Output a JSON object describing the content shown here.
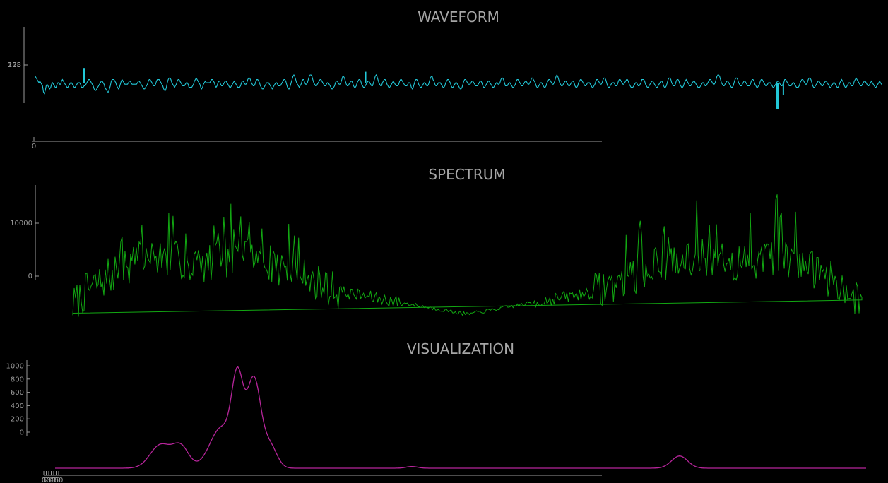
{
  "chart_data": [
    {
      "type": "line",
      "title": "WAVEFORM",
      "color": "#22c8d8",
      "x_ticks": [
        "0"
      ],
      "y_ticks": [
        "128",
        "255"
      ],
      "series": [
        {
          "values": [
            128,
            127,
            126,
            125,
            124,
            125,
            124,
            123,
            122,
            118,
            117,
            119,
            122,
            123,
            122,
            121,
            120,
            121,
            123,
            124,
            123,
            122,
            121,
            121,
            123,
            124,
            124,
            123,
            123,
            125,
            126,
            125,
            124,
            123,
            122,
            121,
            121,
            122,
            123,
            124,
            124,
            123,
            122,
            121,
            121,
            122,
            123,
            124,
            124,
            124,
            123,
            121,
            121,
            121,
            122,
            122,
            123,
            124,
            125,
            126,
            126,
            125,
            124,
            123,
            122,
            120,
            119,
            119,
            120,
            121,
            122,
            123,
            124,
            125,
            125,
            124,
            123,
            121,
            120,
            119,
            118,
            118,
            120,
            122,
            125,
            126,
            126,
            126,
            125,
            124,
            122,
            121,
            120,
            121,
            123,
            125,
            126,
            125,
            124,
            123,
            123,
            123,
            123,
            124,
            125,
            125,
            124,
            123,
            123,
            123,
            123,
            123,
            123,
            124,
            125,
            125,
            124,
            123,
            122,
            121,
            120,
            120,
            121,
            122,
            123,
            125,
            126,
            126,
            125,
            124,
            123,
            122,
            122,
            123,
            125,
            126,
            126,
            126,
            125,
            124,
            123,
            122,
            120,
            119,
            119,
            121,
            124,
            126,
            127,
            127,
            126,
            124,
            123,
            122,
            121,
            122,
            123,
            125,
            126,
            126,
            125,
            124,
            123,
            122,
            122,
            122,
            123,
            124,
            124,
            123,
            121,
            121,
            121,
            121,
            122,
            123,
            125,
            126,
            127,
            126,
            125,
            124,
            123,
            121,
            120,
            121,
            123,
            124,
            125,
            124,
            124,
            124,
            124,
            124,
            125,
            126,
            126,
            125,
            124,
            122,
            121,
            122,
            124,
            125,
            125,
            123,
            122,
            122,
            123,
            124,
            125,
            125,
            124,
            123,
            122,
            121,
            121,
            122,
            123,
            124,
            125,
            124,
            123,
            122,
            121,
            121,
            121,
            122,
            124,
            125,
            125,
            124,
            123,
            123,
            124,
            126,
            127,
            127,
            126,
            124,
            123,
            122,
            122,
            123,
            125,
            126,
            126,
            125,
            124,
            122,
            121,
            120,
            120,
            121,
            122,
            123,
            124,
            124,
            124,
            123,
            122,
            121,
            120,
            121,
            122,
            123,
            124,
            124,
            123,
            122,
            122,
            122,
            123,
            124,
            125,
            126,
            126,
            125,
            123,
            121,
            120,
            120,
            122,
            124,
            126,
            128,
            129,
            128,
            126,
            124,
            123,
            122,
            121,
            122,
            123,
            125,
            126,
            126,
            124,
            123,
            123,
            124,
            126,
            128,
            129,
            129,
            128,
            126,
            124,
            123,
            122,
            122,
            123,
            124,
            125,
            126,
            126,
            125,
            124,
            123,
            122,
            122,
            123,
            124,
            124,
            123,
            122,
            121,
            120,
            120,
            121,
            122,
            124,
            125,
            125,
            124,
            123,
            123,
            124,
            126,
            128,
            128,
            127,
            125,
            123,
            122,
            122,
            123,
            124,
            125,
            125,
            124,
            122,
            121,
            121,
            122,
            124,
            125,
            126,
            126,
            125,
            123,
            122,
            121,
            121,
            122,
            123,
            124,
            125,
            125,
            124,
            123,
            122,
            122,
            124,
            126,
            128,
            129,
            128,
            126,
            124,
            123,
            122,
            122,
            124,
            125,
            126,
            126,
            125,
            123,
            122,
            121,
            121,
            122,
            123,
            124,
            125,
            124,
            123,
            122,
            122,
            122,
            123,
            125,
            126,
            126,
            125,
            124,
            123,
            122,
            122,
            122,
            123,
            124,
            124,
            123,
            121,
            120,
            121,
            123,
            125,
            126,
            126,
            125,
            123,
            122,
            121,
            121,
            122,
            123,
            124,
            124,
            123,
            122,
            122,
            123,
            125,
            127,
            128,
            128,
            126,
            125,
            123,
            122,
            122,
            123,
            124,
            124,
            124,
            123,
            122,
            121,
            121,
            122,
            124,
            125,
            126,
            126,
            125,
            124,
            122,
            121,
            121,
            122,
            123,
            124,
            124,
            123,
            122,
            121,
            120,
            120,
            121,
            123,
            125,
            126,
            126,
            125,
            124,
            123,
            123,
            123,
            124,
            125,
            125,
            124,
            123,
            122,
            122,
            122,
            123,
            124,
            125,
            125,
            124,
            122,
            121,
            121,
            122,
            123,
            124,
            125,
            125,
            124,
            123,
            122,
            121,
            121,
            122,
            123,
            124,
            124,
            123,
            123,
            124,
            126,
            127,
            127,
            126,
            124,
            122,
            122,
            122,
            123,
            124,
            124,
            123,
            122,
            121,
            121,
            122,
            123,
            125,
            126,
            126,
            125,
            124,
            123,
            122,
            122,
            123,
            124,
            125,
            125,
            124,
            123,
            123,
            124,
            125,
            127,
            127,
            126,
            125,
            124,
            122,
            121,
            121,
            122,
            123,
            124,
            124,
            123,
            122,
            121,
            121,
            122,
            124,
            125,
            126,
            126,
            125,
            124,
            123,
            123,
            124,
            126,
            128,
            129,
            128,
            126,
            124,
            123,
            122,
            122,
            123,
            124,
            125,
            125,
            124,
            123,
            122,
            122,
            123,
            124,
            125,
            125,
            124,
            122,
            121,
            121,
            122,
            124,
            125,
            126,
            126,
            125,
            124,
            123,
            122,
            122,
            123,
            124,
            124,
            124,
            123,
            122,
            121,
            121,
            122,
            123,
            125,
            126,
            126,
            125,
            124,
            123,
            123,
            124,
            126,
            127,
            127,
            126,
            124,
            122,
            121,
            121,
            122,
            123,
            124,
            124,
            124,
            123,
            122,
            122,
            123,
            125,
            126,
            126,
            125,
            124,
            123,
            123,
            124,
            125,
            126,
            126,
            125,
            123,
            122,
            121,
            121,
            121,
            122,
            123,
            124,
            124,
            123,
            122,
            122,
            123,
            124,
            126,
            126,
            126,
            125,
            123,
            122,
            121,
            121,
            122,
            123,
            124,
            125,
            125,
            124,
            123,
            122,
            121,
            121,
            122,
            123,
            124,
            125,
            125,
            124,
            122,
            121,
            121,
            122,
            124,
            126,
            127,
            127,
            126,
            124,
            123,
            122,
            122,
            123,
            125,
            126,
            126,
            125,
            123,
            122,
            121,
            121,
            122,
            124,
            125,
            126,
            125,
            124,
            123,
            122,
            122,
            123,
            124,
            125,
            125,
            124,
            123,
            122,
            121,
            121,
            121,
            122,
            123,
            124,
            124,
            123,
            122,
            122,
            123,
            124,
            125,
            126,
            126,
            125,
            124,
            123,
            123,
            124,
            126,
            128,
            129,
            129,
            128,
            126,
            124,
            123,
            122,
            122,
            123,
            124,
            125,
            125,
            124,
            123,
            122,
            121,
            121,
            122,
            124,
            126,
            127,
            127,
            126,
            124,
            123,
            122,
            122,
            123,
            124,
            125,
            125,
            124,
            123,
            122,
            122,
            122,
            123,
            125,
            126,
            126,
            125,
            123,
            122,
            121,
            121,
            122,
            123,
            125,
            126,
            126,
            125,
            124,
            123,
            122,
            122,
            123,
            124,
            124,
            124,
            123,
            122,
            121,
            121,
            122,
            123,
            124,
            125,
            125,
            124,
            123,
            122,
            122,
            123,
            124,
            126,
            126,
            125,
            124,
            123,
            122,
            122,
            122,
            123,
            124,
            124,
            123,
            122,
            121,
            121,
            121,
            122,
            124,
            125,
            126,
            126,
            125,
            124,
            123,
            123,
            124,
            126,
            127,
            127,
            126,
            124,
            122,
            121,
            121,
            122,
            123,
            124,
            125,
            125,
            124,
            123,
            122,
            122,
            123,
            124,
            125,
            125,
            124,
            123,
            122,
            121,
            121,
            122,
            123,
            124,
            124,
            123,
            122,
            121,
            121,
            122,
            124,
            125,
            126,
            125,
            124,
            122,
            121,
            121,
            122,
            123,
            124,
            124,
            123,
            122,
            122,
            123,
            125,
            126,
            127,
            126,
            125,
            124,
            123,
            122,
            122,
            123,
            124,
            125,
            125,
            124,
            123,
            122,
            122,
            123,
            124,
            125,
            124,
            123,
            122,
            121,
            121,
            122,
            123,
            124,
            125,
            124,
            123,
            123
          ]
        }
      ],
      "events": [
        {
          "x": 72,
          "value": 133,
          "width": 3
        },
        {
          "x": 487,
          "value": 131,
          "width": 2
        },
        {
          "x": 1094,
          "value": 107,
          "width": 4
        },
        {
          "x": 1103,
          "value": 116,
          "width": 2
        }
      ]
    },
    {
      "type": "line",
      "title": "SPECTRUM",
      "color": "#12a812",
      "y_ticks": [
        "0",
        "10000"
      ],
      "y_tick_values": [
        0,
        10000
      ]
    },
    {
      "type": "area",
      "title": "VISUALIZATION",
      "color": "#b7259b",
      "y_ticks": [
        "0",
        "200",
        "400",
        "600",
        "800",
        "1000"
      ],
      "y_tick_values": [
        0,
        200,
        400,
        600,
        800,
        1000
      ],
      "x_ticks": [
        "0",
        "10",
        "20",
        "30",
        "40",
        "50",
        "60"
      ],
      "peaks": [
        {
          "x": 0.13,
          "value": 210
        },
        {
          "x": 0.155,
          "value": 190
        },
        {
          "x": 0.205,
          "value": 365
        },
        {
          "x": 0.225,
          "value": 730
        },
        {
          "x": 0.245,
          "value": 800
        },
        {
          "x": 0.265,
          "value": 200
        },
        {
          "x": 0.44,
          "value": 15
        },
        {
          "x": 0.77,
          "value": 110
        }
      ]
    }
  ]
}
